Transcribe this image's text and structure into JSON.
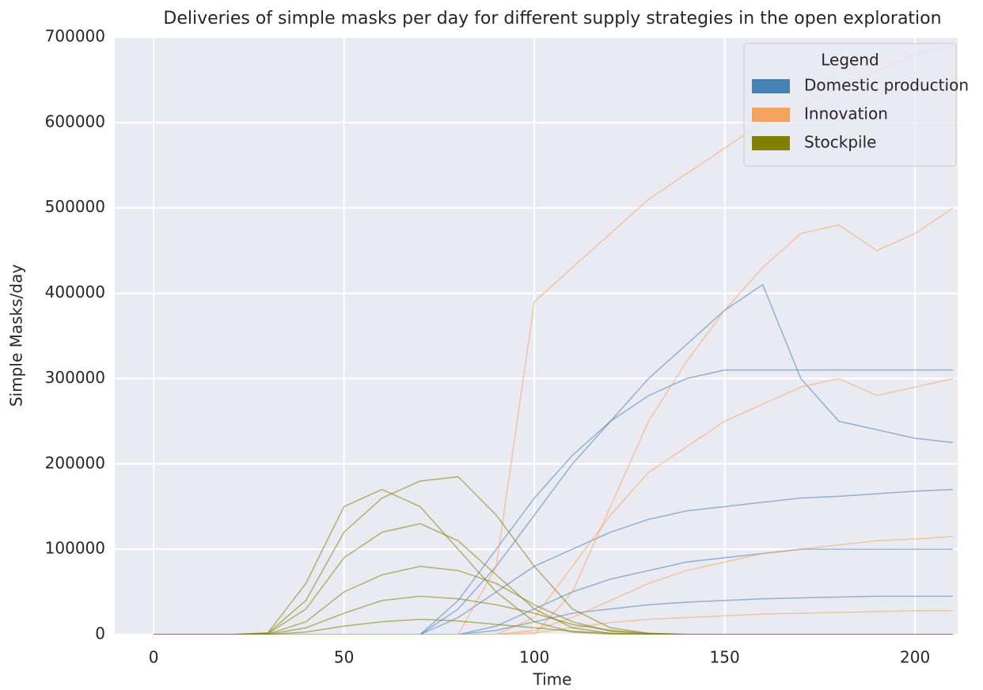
{
  "chart_data": {
    "type": "line",
    "title": "Deliveries of simple masks per day for different supply strategies in the open exploration",
    "x_label": "Time",
    "y_label": "Simple Masks/day",
    "legend_title": "Legend",
    "legend": "upper right",
    "grid": true,
    "xlim": [
      -10.2,
      211.2
    ],
    "ylim": [
      0,
      700000
    ],
    "xticks": [
      0,
      50,
      100,
      150,
      200
    ],
    "yticks": [
      0,
      100000,
      200000,
      300000,
      400000,
      500000,
      600000,
      700000
    ],
    "x": [
      0,
      10,
      20,
      30,
      40,
      50,
      60,
      70,
      80,
      90,
      100,
      110,
      120,
      130,
      140,
      150,
      160,
      170,
      180,
      190,
      200,
      210
    ],
    "series": [
      {
        "name": "Domestic production",
        "color": "#4682b4",
        "lines": [
          [
            0,
            0,
            0,
            0,
            0,
            0,
            0,
            0,
            30000,
            80000,
            140000,
            200000,
            250000,
            300000,
            340000,
            380000,
            410000,
            300000,
            250000,
            240000,
            230000,
            225000
          ],
          [
            0,
            0,
            0,
            0,
            0,
            0,
            0,
            0,
            20000,
            50000,
            80000,
            100000,
            120000,
            135000,
            145000,
            150000,
            155000,
            160000,
            162000,
            165000,
            168000,
            170000
          ],
          [
            0,
            0,
            0,
            0,
            0,
            0,
            0,
            0,
            0,
            10000,
            30000,
            50000,
            65000,
            75000,
            85000,
            90000,
            95000,
            100000,
            100000,
            100000,
            100000,
            100000
          ],
          [
            0,
            0,
            0,
            0,
            0,
            0,
            0,
            0,
            0,
            5000,
            15000,
            25000,
            30000,
            35000,
            38000,
            40000,
            42000,
            43000,
            44000,
            45000,
            45000,
            45000
          ],
          [
            0,
            0,
            0,
            0,
            0,
            0,
            0,
            0,
            40000,
            100000,
            160000,
            210000,
            250000,
            280000,
            300000,
            310000,
            310000,
            310000,
            310000,
            310000,
            310000,
            310000
          ]
        ]
      },
      {
        "name": "Innovation",
        "color": "#f4a460",
        "lines": [
          [
            0,
            0,
            0,
            0,
            0,
            0,
            0,
            0,
            0,
            80000,
            390000,
            430000,
            470000,
            510000,
            540000,
            570000,
            600000,
            620000,
            640000,
            660000,
            680000,
            690000
          ],
          [
            0,
            0,
            0,
            0,
            0,
            0,
            0,
            0,
            0,
            0,
            0,
            50000,
            150000,
            250000,
            320000,
            380000,
            430000,
            470000,
            480000,
            450000,
            470000,
            500000
          ],
          [
            0,
            0,
            0,
            0,
            0,
            0,
            0,
            0,
            0,
            0,
            20000,
            80000,
            140000,
            190000,
            220000,
            250000,
            270000,
            290000,
            300000,
            280000,
            290000,
            300000
          ],
          [
            0,
            0,
            0,
            0,
            0,
            0,
            0,
            0,
            0,
            0,
            5000,
            20000,
            40000,
            60000,
            75000,
            85000,
            95000,
            100000,
            105000,
            110000,
            112000,
            115000
          ],
          [
            0,
            0,
            0,
            0,
            0,
            0,
            0,
            0,
            0,
            0,
            2000,
            8000,
            14000,
            18000,
            20000,
            22000,
            24000,
            25000,
            26000,
            27000,
            28000,
            28000
          ]
        ]
      },
      {
        "name": "Stockpile",
        "color": "#808000",
        "lines": [
          [
            0,
            0,
            0,
            2000,
            60000,
            150000,
            170000,
            150000,
            100000,
            50000,
            15000,
            3000,
            500,
            0,
            0,
            0,
            0,
            0,
            0,
            0,
            0,
            0
          ],
          [
            0,
            0,
            0,
            1000,
            30000,
            90000,
            120000,
            130000,
            110000,
            70000,
            30000,
            8000,
            1500,
            200,
            0,
            0,
            0,
            0,
            0,
            0,
            0,
            0
          ],
          [
            0,
            0,
            0,
            500,
            15000,
            50000,
            70000,
            80000,
            75000,
            60000,
            35000,
            15000,
            4000,
            800,
            100,
            0,
            0,
            0,
            0,
            0,
            0,
            0
          ],
          [
            0,
            0,
            0,
            300,
            8000,
            25000,
            40000,
            45000,
            42000,
            35000,
            25000,
            12000,
            5000,
            1500,
            300,
            0,
            0,
            0,
            0,
            0,
            0,
            0
          ],
          [
            0,
            0,
            0,
            1500,
            40000,
            120000,
            160000,
            180000,
            185000,
            140000,
            80000,
            30000,
            8000,
            1500,
            200,
            0,
            0,
            0,
            0,
            0,
            0,
            0
          ],
          [
            0,
            0,
            0,
            100,
            3000,
            10000,
            15000,
            18000,
            16000,
            12000,
            8000,
            4000,
            1500,
            500,
            100,
            0,
            0,
            0,
            0,
            0,
            0,
            0
          ]
        ]
      }
    ]
  }
}
